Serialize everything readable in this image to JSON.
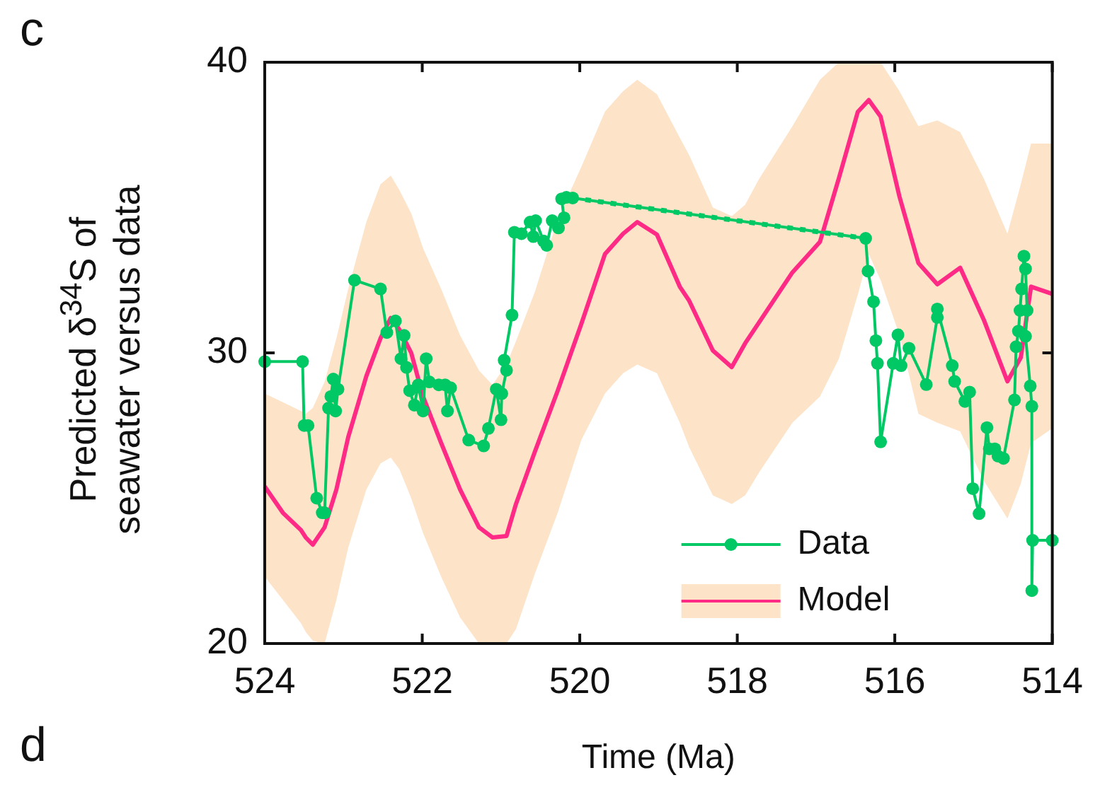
{
  "chart_data": {
    "type": "line",
    "xlabel": "Time (Ma)",
    "ylabel": "Predicted δ$^{34}$S of seawater versus data",
    "annotations": [
      "c",
      "d"
    ],
    "xlim": [
      524,
      514
    ],
    "xticks": [
      524,
      522,
      520,
      518,
      516,
      514
    ],
    "ylim": [
      20,
      40
    ],
    "yticks": [
      20,
      30,
      40
    ],
    "grid": false,
    "legend": "bottom right",
    "series": [
      {
        "name": "Data",
        "color": "#00c864",
        "marker": "circle",
        "line_style": "solid",
        "x": [
          524.0,
          523.52,
          523.5,
          523.45,
          523.34,
          523.27,
          523.24,
          523.19,
          523.16,
          523.13,
          523.1,
          523.07,
          522.86,
          522.53,
          522.45,
          522.34,
          522.27,
          522.23,
          522.2,
          522.16,
          522.1,
          522.05,
          521.99,
          521.95,
          521.91,
          521.79,
          521.71,
          521.68,
          521.64,
          521.41,
          521.22,
          521.16,
          521.06,
          521.0,
          520.99,
          520.93,
          520.96,
          520.86,
          520.83,
          520.74,
          520.63,
          520.59,
          520.56,
          520.46,
          520.42,
          520.35,
          520.27,
          520.2,
          520.23,
          520.17,
          520.09,
          516.37,
          516.34,
          516.27,
          516.24,
          516.22,
          516.18,
          516.02,
          515.96,
          515.92,
          515.82,
          515.6,
          515.46,
          515.46,
          515.27,
          515.24,
          515.11,
          515.05,
          515.01,
          514.93,
          514.83,
          514.8,
          514.73,
          514.69,
          514.62,
          514.48,
          514.46,
          514.43,
          514.41,
          514.39,
          514.36,
          514.34,
          514.32,
          514.34,
          514.28,
          514.26,
          514.26,
          514.25,
          514.0
        ],
        "values": [
          29.7,
          29.7,
          27.5,
          27.5,
          25.0,
          24.5,
          24.5,
          28.1,
          28.5,
          29.1,
          28.0,
          28.75,
          32.5,
          32.2,
          30.7,
          31.1,
          29.8,
          30.6,
          29.5,
          28.7,
          28.2,
          28.9,
          28.0,
          29.8,
          29.0,
          28.9,
          28.9,
          28.0,
          28.8,
          27.0,
          26.8,
          27.4,
          28.75,
          27.7,
          28.6,
          29.4,
          29.75,
          31.3,
          34.15,
          34.1,
          34.5,
          34.0,
          34.55,
          33.85,
          33.7,
          34.55,
          34.3,
          34.65,
          35.3,
          35.35,
          35.33,
          33.94,
          32.81,
          31.76,
          30.42,
          29.64,
          26.94,
          29.64,
          30.62,
          29.56,
          30.16,
          28.91,
          31.22,
          31.51,
          29.56,
          29.02,
          28.33,
          28.65,
          25.33,
          24.47,
          27.43,
          26.7,
          26.7,
          26.45,
          26.37,
          28.38,
          30.21,
          30.75,
          31.46,
          32.2,
          33.33,
          32.89,
          31.46,
          30.57,
          28.86,
          28.16,
          21.82,
          23.55,
          23.55
        ]
      },
      {
        "color": "#00c864",
        "marker": "none",
        "line_style": "dotted",
        "x": [
          520.09,
          516.37
        ],
        "values": [
          35.33,
          33.94
        ]
      },
      {
        "name": "Model",
        "color": "#ff2a85",
        "marker": "none",
        "line_style": "solid",
        "x": [
          524.0,
          523.77,
          523.54,
          523.48,
          523.39,
          523.24,
          523.09,
          522.94,
          522.71,
          522.53,
          522.4,
          522.29,
          522.14,
          521.99,
          521.76,
          521.52,
          521.28,
          521.11,
          520.93,
          520.81,
          520.57,
          520.28,
          519.98,
          519.68,
          519.45,
          519.27,
          519.02,
          518.73,
          518.61,
          518.31,
          518.07,
          517.9,
          517.72,
          517.3,
          516.95,
          516.71,
          516.47,
          516.33,
          516.18,
          515.94,
          515.7,
          515.46,
          515.17,
          514.87,
          514.57,
          514.4,
          514.27,
          514.0
        ],
        "values": [
          25.4,
          24.5,
          23.9,
          23.65,
          23.4,
          24.0,
          25.3,
          27.1,
          29.2,
          30.5,
          31.2,
          30.8,
          30.0,
          28.5,
          26.9,
          25.3,
          24.0,
          23.65,
          23.7,
          24.8,
          26.6,
          28.7,
          31.0,
          33.4,
          34.1,
          34.5,
          34.07,
          32.28,
          31.79,
          30.08,
          29.51,
          30.33,
          31.06,
          32.77,
          33.82,
          36.01,
          38.29,
          38.7,
          38.13,
          35.37,
          33.09,
          32.36,
          32.93,
          31.14,
          29.02,
          29.84,
          32.28,
          32.03
        ],
        "lower": [
          22.3,
          21.5,
          20.7,
          20.4,
          20.1,
          20.0,
          21.5,
          23.3,
          25.3,
          26.2,
          26.4,
          26.0,
          25.0,
          23.8,
          22.3,
          20.9,
          20.0,
          20.0,
          20.0,
          20.5,
          22.4,
          24.5,
          27.0,
          28.6,
          29.3,
          29.6,
          29.3,
          27.6,
          26.75,
          25.1,
          24.8,
          25.1,
          25.9,
          27.6,
          28.5,
          29.8,
          32.0,
          33.4,
          32.5,
          30.6,
          27.9,
          27.6,
          27.3,
          25.6,
          24.3,
          25.5,
          26.9,
          27.4
        ],
        "upper": [
          28.6,
          28.3,
          28.0,
          27.9,
          28.1,
          29.0,
          30.5,
          32.2,
          34.5,
          35.8,
          36.1,
          35.6,
          34.8,
          33.6,
          32.2,
          30.6,
          29.4,
          28.9,
          29.6,
          30.4,
          32.1,
          34.6,
          36.4,
          38.3,
          39.0,
          39.4,
          38.9,
          37.4,
          36.8,
          35.0,
          34.7,
          35.1,
          36.0,
          37.8,
          39.4,
          40,
          40,
          40,
          40,
          39.0,
          37.8,
          38.0,
          37.6,
          36.0,
          34.1,
          35.8,
          37.2,
          37.2
        ]
      }
    ]
  }
}
